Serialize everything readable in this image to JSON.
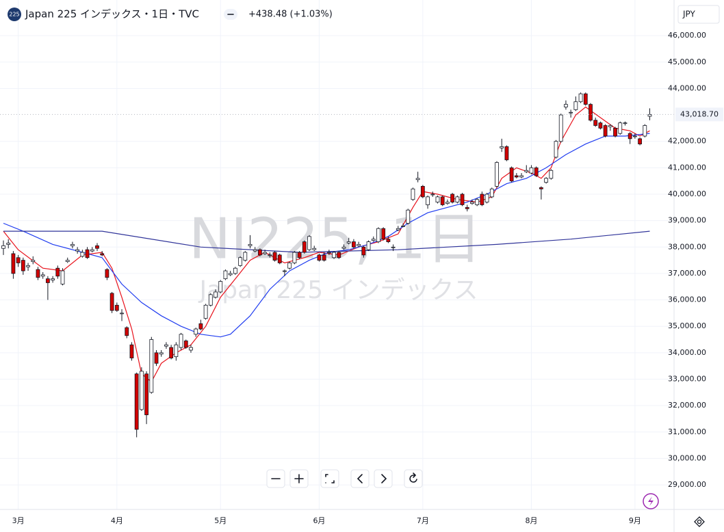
{
  "chart_data": {
    "type": "candlestick",
    "logo": "225",
    "title": "Japan 225 インデックス・1日・TVC",
    "change": "+438.48 (+1.03%)",
    "currency": "JPY",
    "watermark_symbol": "NI225, 1日",
    "watermark_name": "Japan 225 インデックス",
    "last_price": {
      "value": 43018.7,
      "label": "43,018.70"
    },
    "up_color": "#ffffff",
    "down_color": "#d10000",
    "wick_color": "#131722",
    "grid": true,
    "ylim": [
      28070,
      47350
    ],
    "yticks": [
      {
        "value": 29000,
        "label": "29,000.00"
      },
      {
        "value": 30000,
        "label": "30,000.00"
      },
      {
        "value": 31000,
        "label": "31,000.00"
      },
      {
        "value": 32000,
        "label": "32,000.00"
      },
      {
        "value": 33000,
        "label": "33,000.00"
      },
      {
        "value": 34000,
        "label": "34,000.00"
      },
      {
        "value": 35000,
        "label": "35,000.00"
      },
      {
        "value": 36000,
        "label": "36,000.00"
      },
      {
        "value": 37000,
        "label": "37,000.00"
      },
      {
        "value": 38000,
        "label": "38,000.00"
      },
      {
        "value": 39000,
        "label": "39,000.00"
      },
      {
        "value": 40000,
        "label": "40,000.00"
      },
      {
        "value": 41000,
        "label": "41,000.00"
      },
      {
        "value": 42000,
        "label": "42,000.00"
      },
      {
        "value": 44000,
        "label": "44,000.00"
      },
      {
        "value": 45000,
        "label": "45,000.00"
      },
      {
        "value": 46000,
        "label": "46,000.00"
      }
    ],
    "categories": [
      null,
      null,
      null,
      "3月",
      null,
      null,
      null,
      null,
      null,
      null,
      null,
      null,
      null,
      null,
      null,
      null,
      null,
      null,
      null,
      null,
      null,
      null,
      null,
      "4月",
      null,
      null,
      null,
      null,
      null,
      null,
      null,
      null,
      null,
      null,
      null,
      null,
      null,
      null,
      null,
      null,
      null,
      null,
      null,
      null,
      "5月",
      null,
      null,
      null,
      null,
      null,
      null,
      null,
      null,
      null,
      null,
      null,
      null,
      null,
      null,
      null,
      null,
      null,
      null,
      null,
      "6月",
      null,
      null,
      null,
      null,
      null,
      null,
      null,
      null,
      null,
      null,
      null,
      null,
      null,
      null,
      null,
      null,
      null,
      null,
      null,
      null,
      "7月",
      null,
      null,
      null,
      null,
      null,
      null,
      null,
      null,
      null,
      null,
      null,
      null,
      null,
      null,
      null,
      null,
      null,
      null,
      null,
      null,
      null,
      "8月",
      null,
      null,
      null,
      null,
      null,
      null,
      null,
      null,
      null,
      null,
      null,
      null,
      null,
      null,
      null,
      null,
      null,
      null,
      null,
      null,
      "9月",
      null,
      null,
      null
    ],
    "ohlc": [
      [
        37950,
        38250,
        37700,
        38050
      ],
      [
        38100,
        38300,
        37950,
        38150
      ],
      [
        37750,
        37850,
        36800,
        37000
      ],
      [
        37600,
        37700,
        37250,
        37400
      ],
      [
        37500,
        37600,
        36950,
        37100
      ],
      [
        37250,
        37400,
        37100,
        37300
      ],
      [
        37450,
        37650,
        37350,
        37500
      ],
      [
        37150,
        37250,
        36750,
        36850
      ],
      [
        36900,
        37050,
        36800,
        36950
      ],
      [
        36800,
        36900,
        36000,
        36650
      ],
      [
        36750,
        36900,
        36650,
        36800
      ],
      [
        37200,
        37300,
        36800,
        36900
      ],
      [
        36600,
        37200,
        36550,
        37100
      ],
      [
        37450,
        37600,
        37400,
        37500
      ],
      [
        38050,
        38200,
        37950,
        38100
      ],
      [
        37850,
        38000,
        37750,
        37900
      ],
      [
        37650,
        37900,
        37600,
        37800
      ],
      [
        37900,
        38000,
        37550,
        37600
      ],
      [
        37850,
        38000,
        37800,
        37900
      ],
      [
        38050,
        38150,
        37850,
        37950
      ],
      [
        37750,
        37850,
        37650,
        37700
      ],
      [
        37150,
        37200,
        36750,
        36850
      ],
      [
        36250,
        36300,
        35500,
        35600
      ],
      [
        35800,
        35900,
        35550,
        35600
      ],
      [
        35500,
        35650,
        35200,
        35500
      ],
      [
        34950,
        35000,
        34550,
        34650
      ],
      [
        34300,
        34400,
        33700,
        33800
      ],
      [
        33200,
        33250,
        30800,
        31100
      ],
      [
        31850,
        33450,
        31800,
        33300
      ],
      [
        33200,
        33300,
        31300,
        31650
      ],
      [
        32500,
        34600,
        32450,
        34500
      ],
      [
        34000,
        34100,
        33500,
        33600
      ],
      [
        33950,
        34100,
        33850,
        34000
      ],
      [
        34250,
        34400,
        34150,
        34300
      ],
      [
        34200,
        34300,
        33750,
        33800
      ],
      [
        33850,
        34400,
        33700,
        34300
      ],
      [
        34200,
        34750,
        34100,
        34700
      ],
      [
        34450,
        34500,
        34150,
        34200
      ],
      [
        34100,
        34300,
        34000,
        34200
      ],
      [
        34700,
        34950,
        34600,
        34900
      ],
      [
        35100,
        35250,
        34850,
        34900
      ],
      [
        35300,
        35850,
        35250,
        35800
      ],
      [
        35800,
        36250,
        35750,
        36200
      ],
      [
        36100,
        36400,
        36050,
        36300
      ],
      [
        36300,
        36750,
        36250,
        36700
      ],
      [
        36800,
        37150,
        36750,
        37100
      ],
      [
        36950,
        37100,
        36900,
        37000
      ],
      [
        37000,
        37250,
        36950,
        37200
      ],
      [
        37300,
        37650,
        37250,
        37600
      ],
      [
        37500,
        37850,
        37450,
        37800
      ],
      [
        38050,
        38450,
        37950,
        38100
      ],
      [
        37850,
        38000,
        37800,
        37900
      ],
      [
        37900,
        37950,
        37650,
        37700
      ],
      [
        37750,
        37900,
        37700,
        37800
      ],
      [
        37700,
        37800,
        37600,
        37700
      ],
      [
        37800,
        37850,
        37450,
        37500
      ],
      [
        37700,
        37750,
        37350,
        37400
      ],
      [
        37100,
        37150,
        36900,
        37100
      ],
      [
        37200,
        37450,
        37150,
        37400
      ],
      [
        37400,
        37850,
        37350,
        37800
      ],
      [
        37800,
        37850,
        37550,
        37600
      ],
      [
        38200,
        38250,
        37750,
        37800
      ],
      [
        37900,
        38450,
        37850,
        38400
      ],
      [
        37900,
        38050,
        37850,
        37950
      ],
      [
        37700,
        37750,
        37450,
        37500
      ],
      [
        37700,
        37800,
        37450,
        37500
      ],
      [
        37800,
        37900,
        37700,
        37800
      ],
      [
        37600,
        37850,
        37550,
        37800
      ],
      [
        37800,
        37850,
        37550,
        37600
      ],
      [
        37950,
        38100,
        37900,
        38000
      ],
      [
        38150,
        38350,
        38100,
        38200
      ],
      [
        38200,
        38300,
        37950,
        38000
      ],
      [
        38050,
        38200,
        38000,
        38100
      ],
      [
        38000,
        38050,
        37600,
        37700
      ],
      [
        37900,
        38250,
        37850,
        38200
      ],
      [
        38250,
        38400,
        38200,
        38300
      ],
      [
        38200,
        38750,
        38150,
        38700
      ],
      [
        38700,
        38750,
        38250,
        38300
      ],
      [
        38300,
        38400,
        38150,
        38200
      ],
      [
        38000,
        38100,
        37850,
        38000
      ],
      [
        38650,
        38800,
        38600,
        38700
      ],
      [
        38800,
        38900,
        38750,
        38800
      ],
      [
        38900,
        39450,
        38850,
        39400
      ],
      [
        39800,
        40250,
        39750,
        40200
      ],
      [
        40550,
        40850,
        40450,
        40600
      ],
      [
        40300,
        40350,
        39850,
        39900
      ],
      [
        39600,
        39950,
        39450,
        39900
      ],
      [
        40000,
        40100,
        39900,
        40000
      ],
      [
        39700,
        39950,
        39650,
        39900
      ],
      [
        39900,
        39950,
        39550,
        39600
      ],
      [
        39650,
        39800,
        39600,
        39700
      ],
      [
        40000,
        40050,
        39650,
        39700
      ],
      [
        39700,
        39950,
        39650,
        39900
      ],
      [
        40000,
        40050,
        39550,
        39600
      ],
      [
        39500,
        39600,
        39350,
        39450
      ],
      [
        39650,
        39800,
        39600,
        39700
      ],
      [
        39600,
        39850,
        39550,
        39800
      ],
      [
        40000,
        40100,
        39550,
        39600
      ],
      [
        39700,
        40050,
        39650,
        40000
      ],
      [
        39900,
        40250,
        39850,
        40200
      ],
      [
        40300,
        41250,
        40250,
        41200
      ],
      [
        41750,
        42100,
        41600,
        41800
      ],
      [
        41800,
        41850,
        41250,
        41300
      ],
      [
        41000,
        41050,
        40450,
        40500
      ],
      [
        40700,
        40800,
        40600,
        40650
      ],
      [
        40650,
        40800,
        40600,
        40700
      ],
      [
        40850,
        41100,
        40800,
        40900
      ],
      [
        40800,
        41100,
        40750,
        41000
      ],
      [
        41000,
        41050,
        40650,
        40700
      ],
      [
        40250,
        40300,
        39800,
        40200
      ],
      [
        40450,
        40650,
        40400,
        40600
      ],
      [
        40600,
        40950,
        40550,
        40900
      ],
      [
        41400,
        42050,
        41350,
        42000
      ],
      [
        42000,
        43050,
        41950,
        43000
      ],
      [
        43300,
        43550,
        43200,
        43400
      ],
      [
        43100,
        43200,
        42900,
        43100
      ],
      [
        43200,
        43700,
        43150,
        43500
      ],
      [
        43500,
        43850,
        43450,
        43800
      ],
      [
        43800,
        43850,
        43350,
        43400
      ],
      [
        43400,
        43450,
        42750,
        42800
      ],
      [
        42800,
        42900,
        42550,
        42600
      ],
      [
        42700,
        42750,
        42450,
        42500
      ],
      [
        42600,
        42650,
        42150,
        42200
      ],
      [
        42550,
        42650,
        42400,
        42600
      ],
      [
        42500,
        42550,
        42150,
        42200
      ],
      [
        42300,
        42750,
        42250,
        42700
      ],
      [
        42700,
        42750,
        42600,
        42700
      ],
      [
        42300,
        42350,
        41900,
        42100
      ],
      [
        42200,
        42300,
        42100,
        42200
      ],
      [
        42100,
        42150,
        41850,
        41900
      ],
      [
        42200,
        42650,
        42150,
        42600
      ],
      [
        42950,
        43250,
        42800,
        43018.7
      ]
    ],
    "lines": [
      {
        "color": "#e8101a",
        "x": [
          0,
          3,
          8,
          12,
          16,
          20,
          22,
          24,
          26,
          28,
          30,
          32,
          35,
          38,
          41,
          44,
          47,
          50,
          53,
          57,
          61,
          64,
          68,
          72,
          76,
          80,
          83,
          85,
          88,
          92,
          96,
          99,
          101,
          104,
          107,
          109,
          111,
          113,
          116,
          118,
          121,
          124,
          127,
          129,
          131
        ],
        "values": [
          38600,
          37900,
          37200,
          37100,
          37700,
          37800,
          37200,
          36100,
          34900,
          33200,
          32900,
          33600,
          34000,
          34300,
          35000,
          36100,
          36800,
          37500,
          37800,
          37400,
          37600,
          37800,
          37700,
          38000,
          38200,
          38500,
          39500,
          40100,
          40000,
          39800,
          39700,
          39900,
          40600,
          41000,
          40800,
          40600,
          41000,
          42000,
          43000,
          43300,
          42900,
          42500,
          42400,
          42200,
          42400
        ]
      },
      {
        "color": "#1f3cf0",
        "x": [
          0,
          4,
          10,
          16,
          20,
          24,
          28,
          32,
          36,
          40,
          44,
          46,
          50,
          54,
          58,
          62,
          66,
          70,
          74,
          78,
          82,
          86,
          90,
          94,
          98,
          102,
          106,
          110,
          114,
          118,
          122,
          126,
          131
        ],
        "values": [
          38900,
          38600,
          38100,
          37800,
          37600,
          36600,
          35900,
          35400,
          35000,
          34700,
          34600,
          34700,
          35400,
          36400,
          37100,
          37500,
          37800,
          37900,
          38100,
          38400,
          38900,
          39300,
          39500,
          39700,
          40000,
          40400,
          40600,
          41000,
          41500,
          41900,
          42200,
          42200,
          42300
        ]
      },
      {
        "color": "#2f3399",
        "x": [
          0,
          20,
          40,
          60,
          80,
          100,
          115,
          131
        ],
        "values": [
          38600,
          38600,
          38000,
          37800,
          37900,
          38100,
          38300,
          38600
        ]
      }
    ]
  }
}
